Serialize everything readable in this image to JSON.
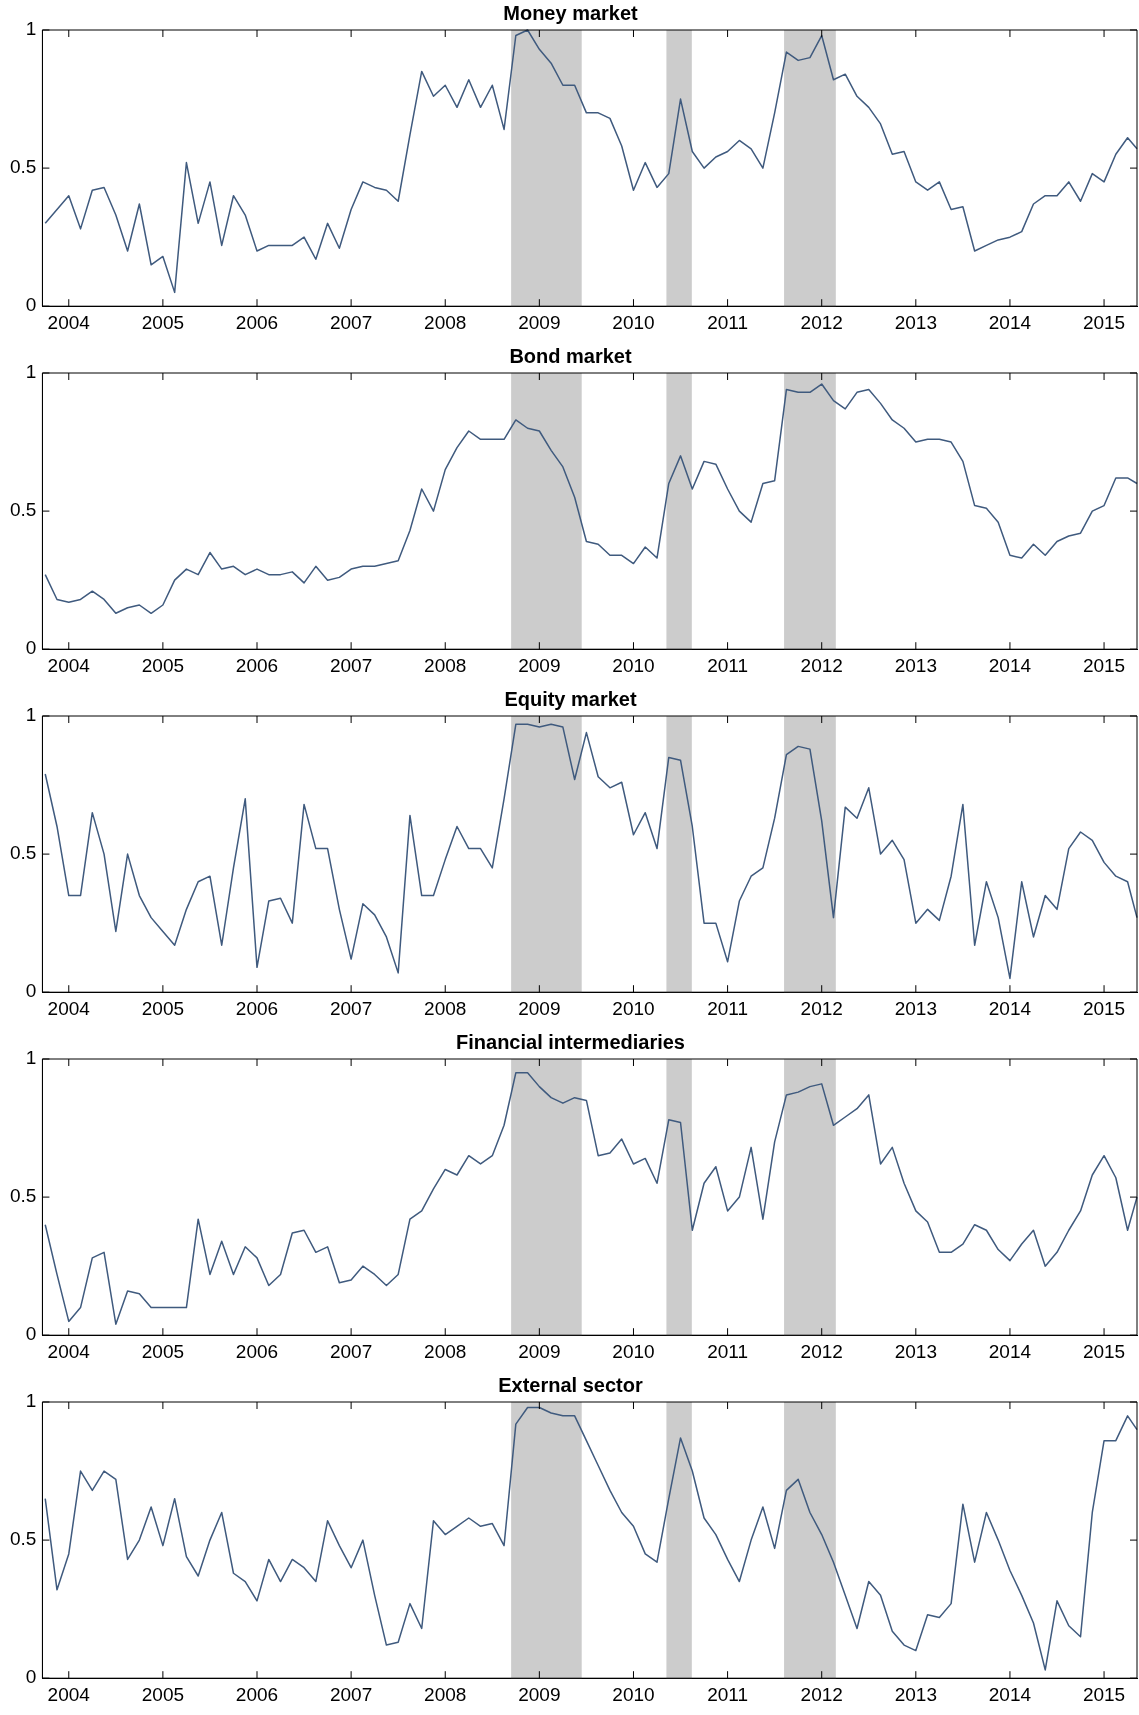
{
  "chart_data": [
    {
      "type": "line",
      "title": "Money market",
      "color": "#3f5a7e",
      "x": [
        2003.75,
        2003.875,
        2004,
        2004.125,
        2004.25,
        2004.375,
        2004.5,
        2004.625,
        2004.75,
        2004.875,
        2005,
        2005.125,
        2005.25,
        2005.375,
        2005.5,
        2005.625,
        2005.75,
        2005.875,
        2006,
        2006.125,
        2006.25,
        2006.375,
        2006.5,
        2006.625,
        2006.75,
        2006.875,
        2007,
        2007.125,
        2007.25,
        2007.375,
        2007.5,
        2007.625,
        2007.75,
        2007.875,
        2008,
        2008.125,
        2008.25,
        2008.375,
        2008.5,
        2008.625,
        2008.75,
        2008.875,
        2009,
        2009.125,
        2009.25,
        2009.375,
        2009.5,
        2009.625,
        2009.75,
        2009.875,
        2010,
        2010.125,
        2010.25,
        2010.375,
        2010.5,
        2010.625,
        2010.75,
        2010.875,
        2011,
        2011.125,
        2011.25,
        2011.375,
        2011.5,
        2011.625,
        2011.75,
        2011.875,
        2012,
        2012.125,
        2012.25,
        2012.375,
        2012.5,
        2012.625,
        2012.75,
        2012.875,
        2013,
        2013.125,
        2013.25,
        2013.375,
        2013.5,
        2013.625,
        2013.75,
        2013.875,
        2014,
        2014.125,
        2014.25,
        2014.375,
        2014.5,
        2014.625,
        2014.75,
        2014.875,
        2015,
        2015.125,
        2015.25,
        2015.35
      ],
      "values": [
        0.3,
        0.35,
        0.4,
        0.28,
        0.42,
        0.43,
        0.33,
        0.2,
        0.37,
        0.15,
        0.18,
        0.05,
        0.52,
        0.3,
        0.45,
        0.22,
        0.4,
        0.33,
        0.2,
        0.22,
        0.22,
        0.22,
        0.25,
        0.17,
        0.3,
        0.21,
        0.35,
        0.45,
        0.43,
        0.42,
        0.38,
        0.62,
        0.85,
        0.76,
        0.8,
        0.72,
        0.82,
        0.72,
        0.8,
        0.64,
        0.98,
        1.0,
        0.93,
        0.88,
        0.8,
        0.8,
        0.7,
        0.7,
        0.68,
        0.58,
        0.42,
        0.52,
        0.43,
        0.48,
        0.75,
        0.56,
        0.5,
        0.54,
        0.56,
        0.6,
        0.57,
        0.5,
        0.7,
        0.92,
        0.89,
        0.9,
        0.98,
        0.82,
        0.84,
        0.76,
        0.72,
        0.66,
        0.55,
        0.56,
        0.45,
        0.42,
        0.45,
        0.35,
        0.36,
        0.2,
        0.22,
        0.24,
        0.25,
        0.27,
        0.37,
        0.4,
        0.4,
        0.45,
        0.38,
        0.48,
        0.45,
        0.55,
        0.61,
        0.57
      ],
      "xlim": [
        2003.72,
        2015.35
      ],
      "xticks": [
        2004,
        2005,
        2006,
        2007,
        2008,
        2009,
        2010,
        2011,
        2012,
        2013,
        2014,
        2015
      ],
      "ylim": [
        0,
        1
      ],
      "yticks": [
        0,
        0.5,
        1
      ],
      "bands": [
        {
          "axis": "x",
          "from": 2008.7,
          "to": 2009.45,
          "color": "#cccccc"
        },
        {
          "axis": "x",
          "from": 2010.35,
          "to": 2010.62,
          "color": "#cccccc"
        },
        {
          "axis": "x",
          "from": 2011.6,
          "to": 2012.15,
          "color": "#cccccc"
        }
      ]
    },
    {
      "type": "line",
      "title": "Bond market",
      "color": "#3f5a7e",
      "x": [
        2003.75,
        2003.875,
        2004,
        2004.125,
        2004.25,
        2004.375,
        2004.5,
        2004.625,
        2004.75,
        2004.875,
        2005,
        2005.125,
        2005.25,
        2005.375,
        2005.5,
        2005.625,
        2005.75,
        2005.875,
        2006,
        2006.125,
        2006.25,
        2006.375,
        2006.5,
        2006.625,
        2006.75,
        2006.875,
        2007,
        2007.125,
        2007.25,
        2007.375,
        2007.5,
        2007.625,
        2007.75,
        2007.875,
        2008,
        2008.125,
        2008.25,
        2008.375,
        2008.5,
        2008.625,
        2008.75,
        2008.875,
        2009,
        2009.125,
        2009.25,
        2009.375,
        2009.5,
        2009.625,
        2009.75,
        2009.875,
        2010,
        2010.125,
        2010.25,
        2010.375,
        2010.5,
        2010.625,
        2010.75,
        2010.875,
        2011,
        2011.125,
        2011.25,
        2011.375,
        2011.5,
        2011.625,
        2011.75,
        2011.875,
        2012,
        2012.125,
        2012.25,
        2012.375,
        2012.5,
        2012.625,
        2012.75,
        2012.875,
        2013,
        2013.125,
        2013.25,
        2013.375,
        2013.5,
        2013.625,
        2013.75,
        2013.875,
        2014,
        2014.125,
        2014.25,
        2014.375,
        2014.5,
        2014.625,
        2014.75,
        2014.875,
        2015,
        2015.125,
        2015.25,
        2015.35
      ],
      "values": [
        0.27,
        0.18,
        0.17,
        0.18,
        0.21,
        0.18,
        0.13,
        0.15,
        0.16,
        0.13,
        0.16,
        0.25,
        0.29,
        0.27,
        0.35,
        0.29,
        0.3,
        0.27,
        0.29,
        0.27,
        0.27,
        0.28,
        0.24,
        0.3,
        0.25,
        0.26,
        0.29,
        0.3,
        0.3,
        0.31,
        0.32,
        0.43,
        0.58,
        0.5,
        0.65,
        0.73,
        0.79,
        0.76,
        0.76,
        0.76,
        0.83,
        0.8,
        0.79,
        0.72,
        0.66,
        0.55,
        0.39,
        0.38,
        0.34,
        0.34,
        0.31,
        0.37,
        0.33,
        0.6,
        0.7,
        0.58,
        0.68,
        0.67,
        0.58,
        0.5,
        0.46,
        0.6,
        0.61,
        0.94,
        0.93,
        0.93,
        0.96,
        0.9,
        0.87,
        0.93,
        0.94,
        0.89,
        0.83,
        0.8,
        0.75,
        0.76,
        0.76,
        0.75,
        0.68,
        0.52,
        0.51,
        0.46,
        0.34,
        0.33,
        0.38,
        0.34,
        0.39,
        0.41,
        0.42,
        0.5,
        0.52,
        0.62,
        0.62,
        0.6
      ],
      "xlim": [
        2003.72,
        2015.35
      ],
      "xticks": [
        2004,
        2005,
        2006,
        2007,
        2008,
        2009,
        2010,
        2011,
        2012,
        2013,
        2014,
        2015
      ],
      "ylim": [
        0,
        1
      ],
      "yticks": [
        0,
        0.5,
        1
      ],
      "bands": [
        {
          "axis": "x",
          "from": 2008.7,
          "to": 2009.45,
          "color": "#cccccc"
        },
        {
          "axis": "x",
          "from": 2010.35,
          "to": 2010.62,
          "color": "#cccccc"
        },
        {
          "axis": "x",
          "from": 2011.6,
          "to": 2012.15,
          "color": "#cccccc"
        }
      ]
    },
    {
      "type": "line",
      "title": "Equity market",
      "color": "#3f5a7e",
      "x": [
        2003.75,
        2003.875,
        2004,
        2004.125,
        2004.25,
        2004.375,
        2004.5,
        2004.625,
        2004.75,
        2004.875,
        2005,
        2005.125,
        2005.25,
        2005.375,
        2005.5,
        2005.625,
        2005.75,
        2005.875,
        2006,
        2006.125,
        2006.25,
        2006.375,
        2006.5,
        2006.625,
        2006.75,
        2006.875,
        2007,
        2007.125,
        2007.25,
        2007.375,
        2007.5,
        2007.625,
        2007.75,
        2007.875,
        2008,
        2008.125,
        2008.25,
        2008.375,
        2008.5,
        2008.625,
        2008.75,
        2008.875,
        2009,
        2009.125,
        2009.25,
        2009.375,
        2009.5,
        2009.625,
        2009.75,
        2009.875,
        2010,
        2010.125,
        2010.25,
        2010.375,
        2010.5,
        2010.625,
        2010.75,
        2010.875,
        2011,
        2011.125,
        2011.25,
        2011.375,
        2011.5,
        2011.625,
        2011.75,
        2011.875,
        2012,
        2012.125,
        2012.25,
        2012.375,
        2012.5,
        2012.625,
        2012.75,
        2012.875,
        2013,
        2013.125,
        2013.25,
        2013.375,
        2013.5,
        2013.625,
        2013.75,
        2013.875,
        2014,
        2014.125,
        2014.25,
        2014.375,
        2014.5,
        2014.625,
        2014.75,
        2014.875,
        2015,
        2015.125,
        2015.25,
        2015.35
      ],
      "values": [
        0.79,
        0.6,
        0.35,
        0.35,
        0.65,
        0.5,
        0.22,
        0.5,
        0.35,
        0.27,
        0.22,
        0.17,
        0.3,
        0.4,
        0.42,
        0.17,
        0.45,
        0.7,
        0.09,
        0.33,
        0.34,
        0.25,
        0.68,
        0.52,
        0.52,
        0.3,
        0.12,
        0.32,
        0.28,
        0.2,
        0.07,
        0.64,
        0.35,
        0.35,
        0.48,
        0.6,
        0.52,
        0.52,
        0.45,
        0.7,
        0.97,
        0.97,
        0.96,
        0.97,
        0.96,
        0.77,
        0.94,
        0.78,
        0.74,
        0.76,
        0.57,
        0.65,
        0.52,
        0.85,
        0.84,
        0.6,
        0.25,
        0.25,
        0.11,
        0.33,
        0.42,
        0.45,
        0.63,
        0.86,
        0.89,
        0.88,
        0.62,
        0.27,
        0.67,
        0.63,
        0.74,
        0.5,
        0.55,
        0.48,
        0.25,
        0.3,
        0.26,
        0.42,
        0.68,
        0.17,
        0.4,
        0.27,
        0.05,
        0.4,
        0.2,
        0.35,
        0.3,
        0.52,
        0.58,
        0.55,
        0.47,
        0.42,
        0.4,
        0.27
      ],
      "xlim": [
        2003.72,
        2015.35
      ],
      "xticks": [
        2004,
        2005,
        2006,
        2007,
        2008,
        2009,
        2010,
        2011,
        2012,
        2013,
        2014,
        2015
      ],
      "ylim": [
        0,
        1
      ],
      "yticks": [
        0,
        0.5,
        1
      ],
      "bands": [
        {
          "axis": "x",
          "from": 2008.7,
          "to": 2009.45,
          "color": "#cccccc"
        },
        {
          "axis": "x",
          "from": 2010.35,
          "to": 2010.62,
          "color": "#cccccc"
        },
        {
          "axis": "x",
          "from": 2011.6,
          "to": 2012.15,
          "color": "#cccccc"
        }
      ]
    },
    {
      "type": "line",
      "title": "Financial intermediaries",
      "color": "#3f5a7e",
      "x": [
        2003.75,
        2003.875,
        2004,
        2004.125,
        2004.25,
        2004.375,
        2004.5,
        2004.625,
        2004.75,
        2004.875,
        2005,
        2005.125,
        2005.25,
        2005.375,
        2005.5,
        2005.625,
        2005.75,
        2005.875,
        2006,
        2006.125,
        2006.25,
        2006.375,
        2006.5,
        2006.625,
        2006.75,
        2006.875,
        2007,
        2007.125,
        2007.25,
        2007.375,
        2007.5,
        2007.625,
        2007.75,
        2007.875,
        2008,
        2008.125,
        2008.25,
        2008.375,
        2008.5,
        2008.625,
        2008.75,
        2008.875,
        2009,
        2009.125,
        2009.25,
        2009.375,
        2009.5,
        2009.625,
        2009.75,
        2009.875,
        2010,
        2010.125,
        2010.25,
        2010.375,
        2010.5,
        2010.625,
        2010.75,
        2010.875,
        2011,
        2011.125,
        2011.25,
        2011.375,
        2011.5,
        2011.625,
        2011.75,
        2011.875,
        2012,
        2012.125,
        2012.25,
        2012.375,
        2012.5,
        2012.625,
        2012.75,
        2012.875,
        2013,
        2013.125,
        2013.25,
        2013.375,
        2013.5,
        2013.625,
        2013.75,
        2013.875,
        2014,
        2014.125,
        2014.25,
        2014.375,
        2014.5,
        2014.625,
        2014.75,
        2014.875,
        2015,
        2015.125,
        2015.25,
        2015.35
      ],
      "values": [
        0.4,
        0.22,
        0.05,
        0.1,
        0.28,
        0.3,
        0.04,
        0.16,
        0.15,
        0.1,
        0.1,
        0.1,
        0.1,
        0.42,
        0.22,
        0.34,
        0.22,
        0.32,
        0.28,
        0.18,
        0.22,
        0.37,
        0.38,
        0.3,
        0.32,
        0.19,
        0.2,
        0.25,
        0.22,
        0.18,
        0.22,
        0.42,
        0.45,
        0.53,
        0.6,
        0.58,
        0.65,
        0.62,
        0.65,
        0.76,
        0.95,
        0.95,
        0.9,
        0.86,
        0.84,
        0.86,
        0.85,
        0.65,
        0.66,
        0.71,
        0.62,
        0.64,
        0.55,
        0.78,
        0.77,
        0.38,
        0.55,
        0.61,
        0.45,
        0.5,
        0.68,
        0.42,
        0.7,
        0.87,
        0.88,
        0.9,
        0.91,
        0.76,
        0.79,
        0.82,
        0.87,
        0.62,
        0.68,
        0.55,
        0.45,
        0.41,
        0.3,
        0.3,
        0.33,
        0.4,
        0.38,
        0.31,
        0.27,
        0.33,
        0.38,
        0.25,
        0.3,
        0.38,
        0.45,
        0.58,
        0.65,
        0.57,
        0.38,
        0.5
      ],
      "xlim": [
        2003.72,
        2015.35
      ],
      "xticks": [
        2004,
        2005,
        2006,
        2007,
        2008,
        2009,
        2010,
        2011,
        2012,
        2013,
        2014,
        2015
      ],
      "ylim": [
        0,
        1
      ],
      "yticks": [
        0,
        0.5,
        1
      ],
      "bands": [
        {
          "axis": "x",
          "from": 2008.7,
          "to": 2009.45,
          "color": "#cccccc"
        },
        {
          "axis": "x",
          "from": 2010.35,
          "to": 2010.62,
          "color": "#cccccc"
        },
        {
          "axis": "x",
          "from": 2011.6,
          "to": 2012.15,
          "color": "#cccccc"
        }
      ]
    },
    {
      "type": "line",
      "title": "External sector",
      "color": "#3f5a7e",
      "x": [
        2003.75,
        2003.875,
        2004,
        2004.125,
        2004.25,
        2004.375,
        2004.5,
        2004.625,
        2004.75,
        2004.875,
        2005,
        2005.125,
        2005.25,
        2005.375,
        2005.5,
        2005.625,
        2005.75,
        2005.875,
        2006,
        2006.125,
        2006.25,
        2006.375,
        2006.5,
        2006.625,
        2006.75,
        2006.875,
        2007,
        2007.125,
        2007.25,
        2007.375,
        2007.5,
        2007.625,
        2007.75,
        2007.875,
        2008,
        2008.125,
        2008.25,
        2008.375,
        2008.5,
        2008.625,
        2008.75,
        2008.875,
        2009,
        2009.125,
        2009.25,
        2009.375,
        2009.5,
        2009.625,
        2009.75,
        2009.875,
        2010,
        2010.125,
        2010.25,
        2010.375,
        2010.5,
        2010.625,
        2010.75,
        2010.875,
        2011,
        2011.125,
        2011.25,
        2011.375,
        2011.5,
        2011.625,
        2011.75,
        2011.875,
        2012,
        2012.125,
        2012.25,
        2012.375,
        2012.5,
        2012.625,
        2012.75,
        2012.875,
        2013,
        2013.125,
        2013.25,
        2013.375,
        2013.5,
        2013.625,
        2013.75,
        2013.875,
        2014,
        2014.125,
        2014.25,
        2014.375,
        2014.5,
        2014.625,
        2014.75,
        2014.875,
        2015,
        2015.125,
        2015.25,
        2015.35
      ],
      "values": [
        0.65,
        0.32,
        0.45,
        0.75,
        0.68,
        0.75,
        0.72,
        0.43,
        0.5,
        0.62,
        0.48,
        0.65,
        0.44,
        0.37,
        0.5,
        0.6,
        0.38,
        0.35,
        0.28,
        0.43,
        0.35,
        0.43,
        0.4,
        0.35,
        0.57,
        0.48,
        0.4,
        0.5,
        0.3,
        0.12,
        0.13,
        0.27,
        0.18,
        0.57,
        0.52,
        0.55,
        0.58,
        0.55,
        0.56,
        0.48,
        0.92,
        0.98,
        0.98,
        0.96,
        0.95,
        0.95,
        0.86,
        0.77,
        0.68,
        0.6,
        0.55,
        0.45,
        0.42,
        0.65,
        0.87,
        0.75,
        0.58,
        0.52,
        0.43,
        0.35,
        0.5,
        0.62,
        0.47,
        0.68,
        0.72,
        0.6,
        0.52,
        0.42,
        0.3,
        0.18,
        0.35,
        0.3,
        0.17,
        0.12,
        0.1,
        0.23,
        0.22,
        0.27,
        0.63,
        0.42,
        0.6,
        0.5,
        0.39,
        0.3,
        0.2,
        0.03,
        0.28,
        0.19,
        0.15,
        0.6,
        0.86,
        0.86,
        0.95,
        0.9
      ],
      "xlim": [
        2003.72,
        2015.35
      ],
      "xticks": [
        2004,
        2005,
        2006,
        2007,
        2008,
        2009,
        2010,
        2011,
        2012,
        2013,
        2014,
        2015
      ],
      "ylim": [
        0,
        1
      ],
      "yticks": [
        0,
        0.5,
        1
      ],
      "bands": [
        {
          "axis": "x",
          "from": 2008.7,
          "to": 2009.45,
          "color": "#cccccc"
        },
        {
          "axis": "x",
          "from": 2010.35,
          "to": 2010.62,
          "color": "#cccccc"
        },
        {
          "axis": "x",
          "from": 2011.6,
          "to": 2012.15,
          "color": "#cccccc"
        }
      ]
    }
  ]
}
